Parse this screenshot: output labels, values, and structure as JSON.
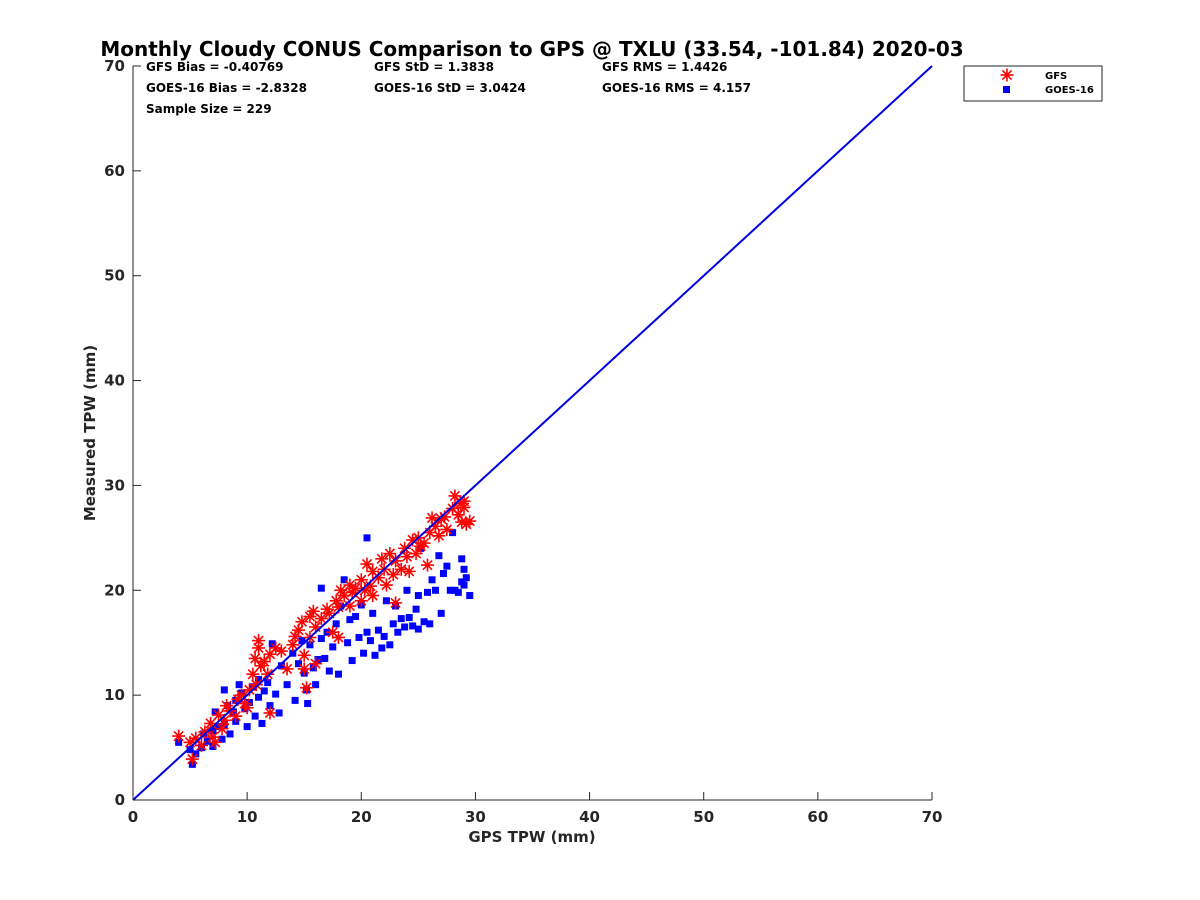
{
  "chart_data": {
    "type": "scatter",
    "title": "Monthly Cloudy CONUS Comparison to GPS @ TXLU (33.54, -101.84) 2020-03",
    "xlabel": "GPS TPW (mm)",
    "ylabel": "Measured TPW (mm)",
    "xlim": [
      0,
      70
    ],
    "ylim": [
      0,
      70
    ],
    "xticks": [
      "0",
      "10",
      "20",
      "30",
      "40",
      "50",
      "60",
      "70"
    ],
    "yticks": [
      "0",
      "10",
      "20",
      "30",
      "40",
      "50",
      "60",
      "70"
    ],
    "grid": false,
    "legend_position": "top-right",
    "reference_line": {
      "x": [
        0,
        70
      ],
      "y": [
        0,
        70
      ],
      "color": "#0000e6"
    },
    "stats": [
      [
        "GFS Bias = -0.40769",
        "GFS StD = 1.3838",
        "GFS RMS = 1.4426"
      ],
      [
        "GOES-16 Bias = -2.8328",
        "GOES-16 StD = 3.0424",
        "GOES-16 RMS = 4.157"
      ],
      [
        "Sample Size = 229"
      ]
    ],
    "series": [
      {
        "name": "GFS",
        "marker": "asterisk",
        "color": "#ff0000",
        "points": [
          [
            4,
            6.1
          ],
          [
            5,
            5.5
          ],
          [
            5.2,
            3.9
          ],
          [
            5.5,
            5.9
          ],
          [
            6,
            5.2
          ],
          [
            6.3,
            6.5
          ],
          [
            6.8,
            7.3
          ],
          [
            7,
            6
          ],
          [
            7.2,
            5.5
          ],
          [
            7.5,
            8.1
          ],
          [
            7.8,
            6.8
          ],
          [
            8,
            7.6
          ],
          [
            8.2,
            9
          ],
          [
            8.5,
            8.5
          ],
          [
            9,
            8
          ],
          [
            9.2,
            9.6
          ],
          [
            9.5,
            10
          ],
          [
            9.8,
            9.2
          ],
          [
            10,
            8.8
          ],
          [
            10.2,
            10.5
          ],
          [
            10.5,
            12
          ],
          [
            10.7,
            13.5
          ],
          [
            10.8,
            11
          ],
          [
            11,
            14.5
          ],
          [
            11,
            15.2
          ],
          [
            11.2,
            12.8
          ],
          [
            11.5,
            13.2
          ],
          [
            11.8,
            12
          ],
          [
            12,
            13.9
          ],
          [
            12,
            8.3
          ],
          [
            12.5,
            14.5
          ],
          [
            13,
            14.2
          ],
          [
            13.5,
            12.5
          ],
          [
            14,
            14.8
          ],
          [
            14.2,
            15.6
          ],
          [
            14.5,
            16.2
          ],
          [
            14.8,
            17
          ],
          [
            15,
            13.8
          ],
          [
            15,
            12.5
          ],
          [
            15.2,
            10.7
          ],
          [
            15.5,
            15.5
          ],
          [
            15.5,
            17.5
          ],
          [
            15.8,
            18
          ],
          [
            16,
            16.5
          ],
          [
            16,
            13
          ],
          [
            16.5,
            17.3
          ],
          [
            17,
            18.2
          ],
          [
            17.2,
            17.8
          ],
          [
            17.5,
            16
          ],
          [
            17.8,
            19
          ],
          [
            18,
            18.4
          ],
          [
            18,
            15.5
          ],
          [
            18.2,
            20
          ],
          [
            18.5,
            19.5
          ],
          [
            19,
            20.5
          ],
          [
            19,
            18.5
          ],
          [
            19.2,
            19.8
          ],
          [
            19.5,
            20.2
          ],
          [
            20,
            19
          ],
          [
            20,
            21
          ],
          [
            20.3,
            20
          ],
          [
            20.5,
            22.5
          ],
          [
            20.8,
            20.4
          ],
          [
            21,
            21.8
          ],
          [
            21,
            19.5
          ],
          [
            21.5,
            21.2
          ],
          [
            21.8,
            23
          ],
          [
            22,
            22
          ],
          [
            22.2,
            20.5
          ],
          [
            22.5,
            23.5
          ],
          [
            22.8,
            21.5
          ],
          [
            23,
            22.8
          ],
          [
            23,
            18.8
          ],
          [
            23.5,
            22
          ],
          [
            23.8,
            24
          ],
          [
            24,
            23.2
          ],
          [
            24.2,
            21.8
          ],
          [
            24.5,
            24.8
          ],
          [
            24.8,
            23.5
          ],
          [
            25,
            25
          ],
          [
            25.2,
            24.2
          ],
          [
            25.5,
            24.5
          ],
          [
            25.8,
            22.4
          ],
          [
            26,
            25.5
          ],
          [
            26.2,
            26.9
          ],
          [
            26.5,
            26.1
          ],
          [
            26.8,
            25.2
          ],
          [
            27,
            26.8
          ],
          [
            27.3,
            27
          ],
          [
            27.5,
            25.8
          ],
          [
            28,
            27.8
          ],
          [
            28.2,
            29
          ],
          [
            28.5,
            27.2
          ],
          [
            28.7,
            28.3
          ],
          [
            28.8,
            26.5
          ],
          [
            29,
            27.9
          ],
          [
            29.2,
            26.3
          ],
          [
            29.5,
            26.6
          ],
          [
            29,
            28.5
          ]
        ]
      },
      {
        "name": "GOES-16",
        "marker": "square",
        "color": "#0000ff",
        "points": [
          [
            4,
            5.5
          ],
          [
            5,
            4.8
          ],
          [
            5.2,
            3.4
          ],
          [
            5.5,
            4.4
          ],
          [
            6,
            5
          ],
          [
            6.2,
            6.3
          ],
          [
            6.5,
            5.6
          ],
          [
            7,
            5.1
          ],
          [
            7,
            6.6
          ],
          [
            7.2,
            8.4
          ],
          [
            7.5,
            7
          ],
          [
            7.8,
            5.8
          ],
          [
            8,
            7.2
          ],
          [
            8,
            10.5
          ],
          [
            8.3,
            9
          ],
          [
            8.5,
            6.3
          ],
          [
            8.8,
            8.4
          ],
          [
            9,
            9.5
          ],
          [
            9,
            7.5
          ],
          [
            9.3,
            11
          ],
          [
            9.5,
            10.2
          ],
          [
            9.8,
            8.7
          ],
          [
            10,
            7
          ],
          [
            10.2,
            9.3
          ],
          [
            10.5,
            10.8
          ],
          [
            10.7,
            8
          ],
          [
            11,
            11.5
          ],
          [
            11,
            9.8
          ],
          [
            11.3,
            7.3
          ],
          [
            11.5,
            10.4
          ],
          [
            11.8,
            11.2
          ],
          [
            12,
            9
          ],
          [
            12.2,
            14.9
          ],
          [
            12.5,
            10.1
          ],
          [
            12.8,
            8.3
          ],
          [
            13,
            12.8
          ],
          [
            13.5,
            11
          ],
          [
            14,
            14
          ],
          [
            14.2,
            9.5
          ],
          [
            14.5,
            13
          ],
          [
            14.8,
            15.2
          ],
          [
            15,
            12.1
          ],
          [
            15.2,
            10.5
          ],
          [
            15.3,
            9.2
          ],
          [
            15.5,
            14.8
          ],
          [
            15.8,
            12.6
          ],
          [
            16,
            11
          ],
          [
            16.2,
            13.4
          ],
          [
            16.5,
            20.2
          ],
          [
            16.5,
            15.4
          ],
          [
            16.8,
            13.5
          ],
          [
            17,
            16
          ],
          [
            17.2,
            12.3
          ],
          [
            17.5,
            14.6
          ],
          [
            17.8,
            16.8
          ],
          [
            18,
            12
          ],
          [
            18.2,
            18.5
          ],
          [
            18.5,
            21
          ],
          [
            18.8,
            15
          ],
          [
            19,
            17.2
          ],
          [
            19.2,
            13.3
          ],
          [
            19.5,
            17.5
          ],
          [
            19.8,
            15.5
          ],
          [
            20,
            18.6
          ],
          [
            20.2,
            14
          ],
          [
            20.5,
            25
          ],
          [
            20.5,
            16
          ],
          [
            20.8,
            15.2
          ],
          [
            21,
            17.8
          ],
          [
            21.2,
            13.8
          ],
          [
            21.5,
            16.2
          ],
          [
            21.8,
            14.5
          ],
          [
            22,
            15.6
          ],
          [
            22.2,
            19
          ],
          [
            22.5,
            14.8
          ],
          [
            22.8,
            16.8
          ],
          [
            23,
            18.5
          ],
          [
            23.2,
            16
          ],
          [
            23.5,
            17.3
          ],
          [
            23.8,
            16.5
          ],
          [
            24,
            20
          ],
          [
            24.2,
            17.4
          ],
          [
            24.5,
            16.6
          ],
          [
            24.8,
            18.2
          ],
          [
            25,
            19.5
          ],
          [
            25,
            16.3
          ],
          [
            25.2,
            24
          ],
          [
            25.5,
            17
          ],
          [
            25.8,
            19.8
          ],
          [
            26,
            16.8
          ],
          [
            26.2,
            21
          ],
          [
            26.5,
            20
          ],
          [
            26.8,
            23.3
          ],
          [
            27,
            17.8
          ],
          [
            27.2,
            21.6
          ],
          [
            27.5,
            22.3
          ],
          [
            27.8,
            20
          ],
          [
            28,
            25.5
          ],
          [
            28.2,
            20
          ],
          [
            28.5,
            19.8
          ],
          [
            28.8,
            23
          ],
          [
            29,
            22
          ],
          [
            29,
            20.5
          ],
          [
            29.2,
            21.2
          ],
          [
            29.5,
            19.5
          ],
          [
            28.8,
            20.8
          ]
        ]
      }
    ]
  }
}
